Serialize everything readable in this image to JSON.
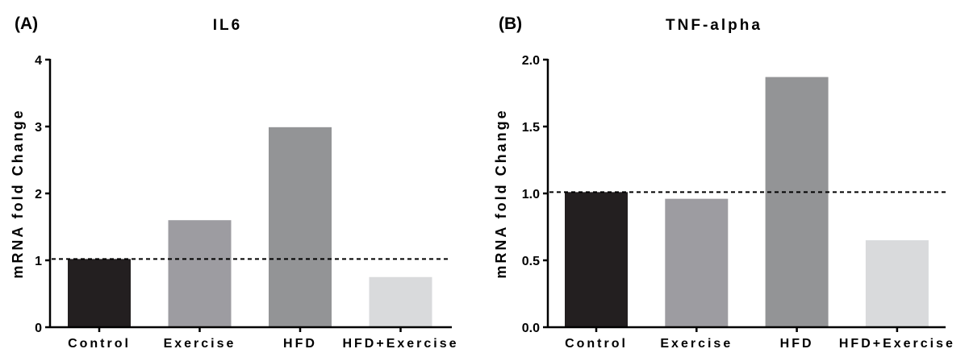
{
  "chart_data": [
    {
      "type": "bar",
      "panel": "(A)",
      "title": "IL6",
      "ylabel": "mRNA fold Change",
      "xlabel": "",
      "categories": [
        "Control",
        "Exercise",
        "HFD",
        "HFD+Exercise"
      ],
      "values": [
        1.02,
        1.6,
        2.99,
        0.75
      ],
      "colors": [
        "#231f20",
        "#9d9ca1",
        "#939496",
        "#d9dadc"
      ],
      "ylim": [
        0,
        4
      ],
      "yticks": [
        0,
        1,
        2,
        3,
        4
      ],
      "ytick_labels": [
        "0",
        "1",
        "2",
        "3",
        "4"
      ],
      "reference_line": 1.02,
      "grid": false
    },
    {
      "type": "bar",
      "panel": "(B)",
      "title": "TNF-alpha",
      "ylabel": "mRNA fold Change",
      "xlabel": "",
      "categories": [
        "Control",
        "Exercise",
        "HFD",
        "HFD+Exercise"
      ],
      "values": [
        1.01,
        0.96,
        1.87,
        0.65
      ],
      "colors": [
        "#231f20",
        "#9d9ca1",
        "#939496",
        "#d9dadc"
      ],
      "ylim": [
        0,
        2
      ],
      "yticks": [
        0,
        0.5,
        1,
        1.5,
        2
      ],
      "ytick_labels": [
        "0.0",
        "0.5",
        "1.0",
        "1.5",
        "2.0"
      ],
      "reference_line": 1.01,
      "grid": false
    }
  ]
}
